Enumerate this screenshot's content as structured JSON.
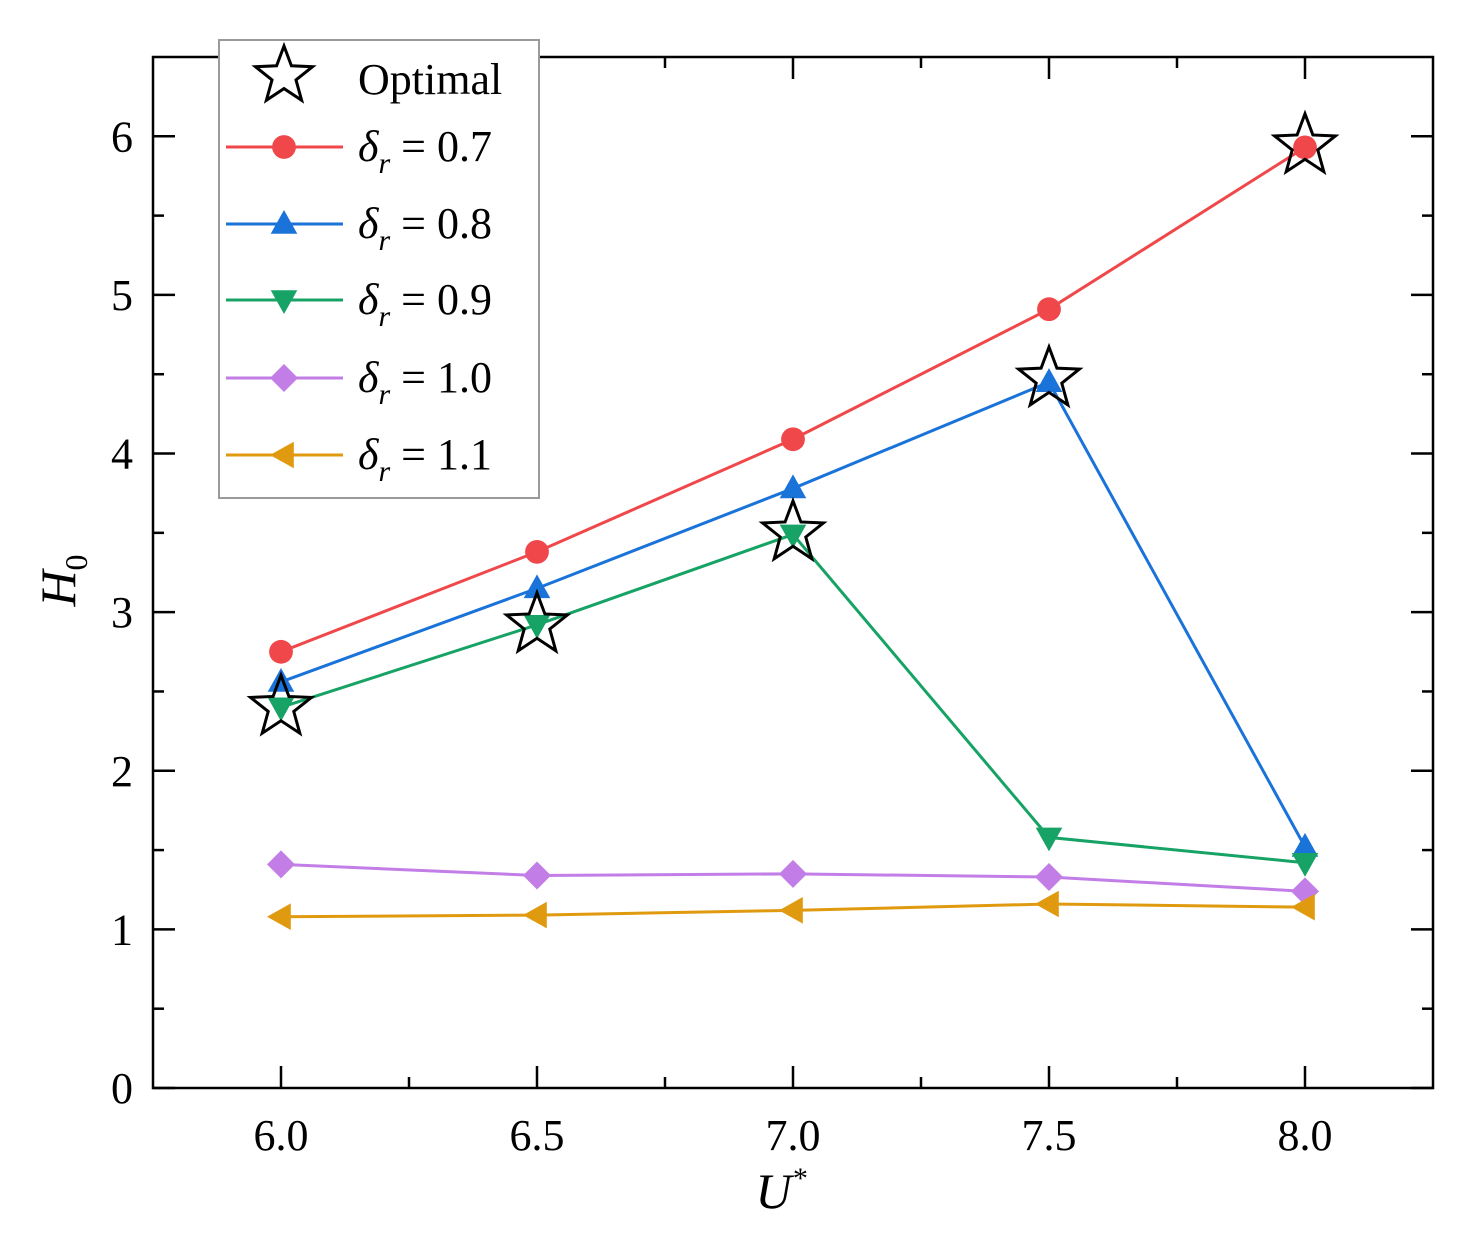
{
  "chart_data": {
    "type": "line",
    "xlabel": "U",
    "xlabel_sup": "*",
    "ylabel": "H",
    "ylabel_sub": "0",
    "xlim": [
      5.75,
      8.25
    ],
    "ylim": [
      0,
      6.5
    ],
    "xticks": [
      6.0,
      6.5,
      7.0,
      7.5,
      8.0
    ],
    "xtick_labels": [
      "6.0",
      "6.5",
      "7.0",
      "7.5",
      "8.0"
    ],
    "yticks": [
      0,
      1,
      2,
      3,
      4,
      5,
      6
    ],
    "ytick_labels": [
      "0",
      "1",
      "2",
      "3",
      "4",
      "5",
      "6"
    ],
    "grid": false,
    "legend_position": "top-left",
    "x": [
      6.0,
      6.5,
      7.0,
      7.5,
      8.0
    ],
    "series": [
      {
        "name": "δr = 0.7",
        "symbol": "δ",
        "sub": "r",
        "value_text": " = 0.7",
        "color": "#f0484a",
        "marker": "circle",
        "values": [
          2.75,
          3.38,
          4.09,
          4.91,
          5.93
        ]
      },
      {
        "name": "δr = 0.8",
        "symbol": "δ",
        "sub": "r",
        "value_text": " = 0.8",
        "color": "#1a73d9",
        "marker": "triangle-up",
        "values": [
          2.56,
          3.15,
          3.78,
          4.45,
          1.52
        ]
      },
      {
        "name": "δr = 0.9",
        "symbol": "δ",
        "sub": "r",
        "value_text": " = 0.9",
        "color": "#17a365",
        "marker": "triangle-down",
        "values": [
          2.4,
          2.92,
          3.49,
          1.58,
          1.42
        ]
      },
      {
        "name": "δr = 1.0",
        "symbol": "δ",
        "sub": "r",
        "value_text": " = 1.0",
        "color": "#c27ee6",
        "marker": "diamond",
        "values": [
          1.41,
          1.34,
          1.35,
          1.33,
          1.24
        ]
      },
      {
        "name": "δr = 1.1",
        "symbol": "δ",
        "sub": "r",
        "value_text": " = 1.1",
        "color": "#e09a10",
        "marker": "triangle-left",
        "values": [
          1.08,
          1.09,
          1.12,
          1.16,
          1.14
        ]
      }
    ],
    "optimal": {
      "name": "Optimal",
      "marker": "star",
      "points": [
        {
          "x": 6.0,
          "y": 2.4
        },
        {
          "x": 6.5,
          "y": 2.92
        },
        {
          "x": 7.0,
          "y": 3.5
        },
        {
          "x": 7.5,
          "y": 4.47
        },
        {
          "x": 8.0,
          "y": 5.94
        }
      ]
    }
  }
}
